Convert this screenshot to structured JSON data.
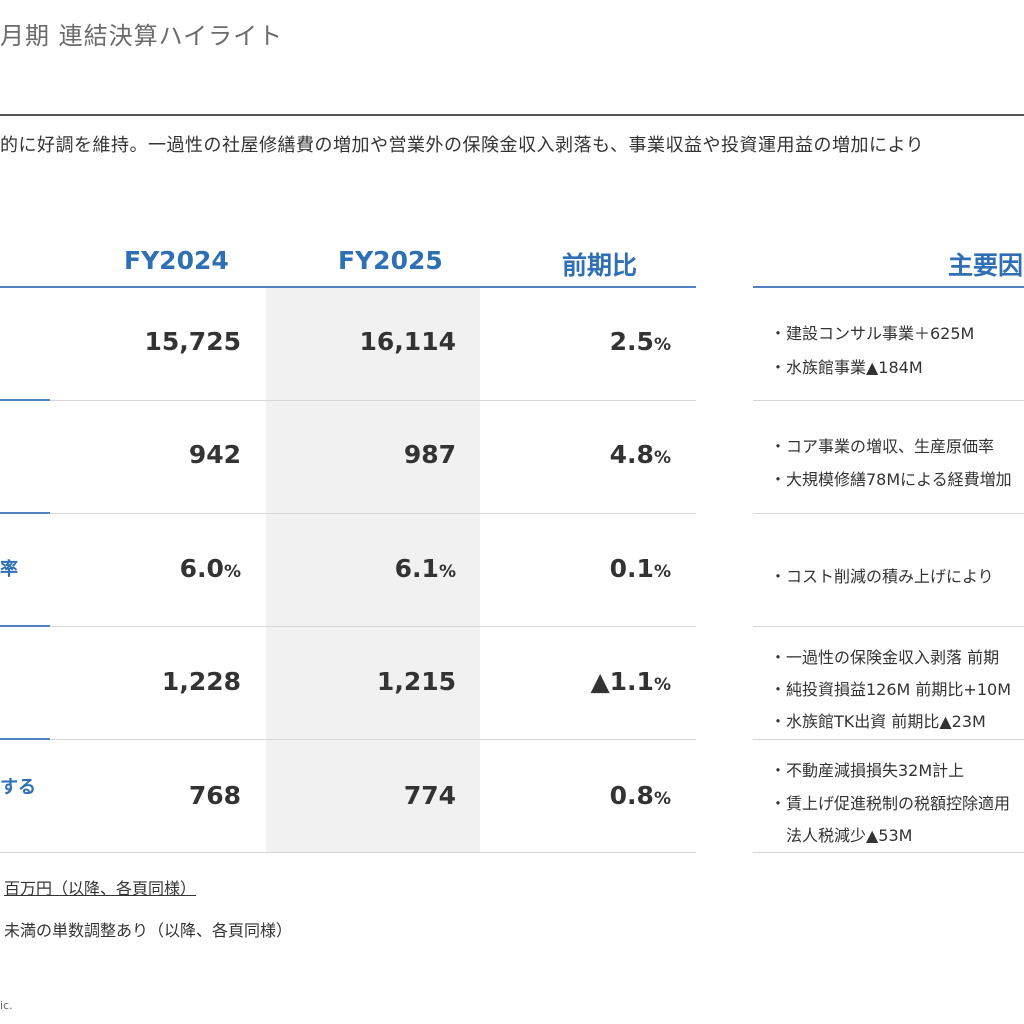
{
  "page": {
    "title": "月期 連結決算ハイライト",
    "summary": "的に好調を維持。一過性の社屋修繕費の増加や営業外の保険金収入剥落も、事業収益や投資運用益の増加により"
  },
  "table": {
    "headers": {
      "label_fragment": "",
      "fy2024": "FY2024",
      "fy2025": "FY2025",
      "change": "前期比",
      "factors": "主要因"
    },
    "rows": [
      {
        "label": "",
        "fy2024": "15,725",
        "fy2025": "16,114",
        "change": "2.5",
        "change_unit": "%",
        "fy2024_unit": "",
        "fy2025_unit": "",
        "factors": [
          "・建設コンサル事業＋625M",
          "・水族館事業▲184M"
        ]
      },
      {
        "label": "",
        "fy2024": "942",
        "fy2025": "987",
        "change": "4.8",
        "change_unit": "%",
        "fy2024_unit": "",
        "fy2025_unit": "",
        "factors": [
          "・コア事業の増収、生産原価率",
          "・大規模修繕78Mによる経費増加"
        ]
      },
      {
        "label": "率",
        "fy2024": "6.0",
        "fy2025": "6.1",
        "change": "0.1",
        "change_unit": "%",
        "fy2024_unit": "%",
        "fy2025_unit": "%",
        "factors": [
          "・コスト削減の積み上げにより"
        ]
      },
      {
        "label": "",
        "fy2024": "1,228",
        "fy2025": "1,215",
        "change": "▲1.1",
        "change_unit": "%",
        "fy2024_unit": "",
        "fy2025_unit": "",
        "factors": [
          "・一過性の保険金収入剥落 前期",
          "・純投資損益126M 前期比+10M",
          "・水族館TK出資 前期比▲23M"
        ]
      },
      {
        "label": "する",
        "fy2024": "768",
        "fy2025": "774",
        "change": "0.8",
        "change_unit": "%",
        "fy2024_unit": "",
        "fy2025_unit": "",
        "factors": [
          "・不動産減損損失32M計上",
          "・賃上げ促進税制の税額控除適用",
          "　法人税減少▲53M"
        ]
      }
    ]
  },
  "notes": {
    "unit_note": "百万円（以降、各頁同様）",
    "rounding_note": "未満の単数調整あり（以降、各頁同様）"
  },
  "footer": {
    "copyright": "ic."
  },
  "colors": {
    "accent_blue": "#2f6fb3",
    "rule_blue": "#4f83c2",
    "highlight_gray": "#f1f1f1"
  }
}
